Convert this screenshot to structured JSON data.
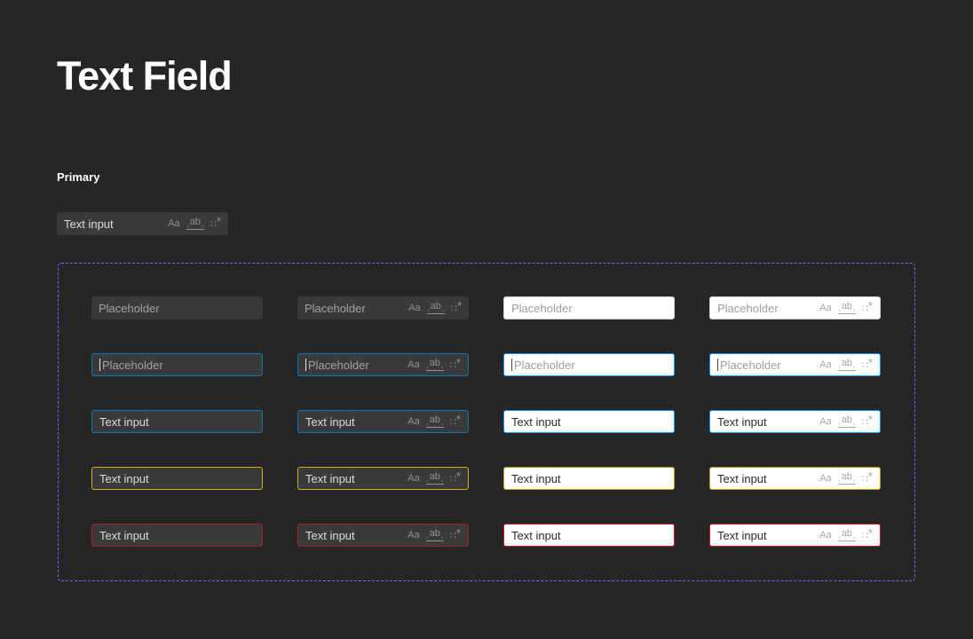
{
  "page": {
    "title": "Text Field",
    "section_label": "Primary"
  },
  "sample_field": {
    "value": "Text input"
  },
  "icons": {
    "case_label": "Aa",
    "ab_label": "ab",
    "tick_glyph": "‚",
    "dots_glyph": "∷",
    "asterisk_glyph": "*"
  },
  "grid": {
    "rows": [
      {
        "state": "default",
        "text": "Placeholder"
      },
      {
        "state": "focus",
        "text": "Placeholder"
      },
      {
        "state": "active",
        "text": "Text input"
      },
      {
        "state": "warning",
        "text": "Text input"
      },
      {
        "state": "error",
        "text": "Text input"
      }
    ],
    "columns": [
      {
        "theme": "dark",
        "icons": false
      },
      {
        "theme": "dark",
        "icons": true
      },
      {
        "theme": "light",
        "icons": false
      },
      {
        "theme": "light",
        "icons": true
      }
    ]
  },
  "colors": {
    "background": "#262626",
    "title_text": "#ffffff",
    "panel_border": "#7b61ff",
    "input_dark_bg": "#3a3a3a",
    "input_dark_text": "#dcdcdc",
    "input_dark_placeholder": "#a1a1a1",
    "input_light_bg": "#ffffff",
    "input_light_text": "#2e2e2e",
    "input_light_placeholder": "#9e9e9e",
    "input_light_border": "#d0d0d0",
    "icon_dark": "#919191",
    "icon_light": "#a6a6a6",
    "focus_blue_dark": "#1273b6",
    "focus_blue_light": "#0d99ff",
    "warning_yellow_dark": "#d8aa14",
    "warning_yellow_light": "#c89600",
    "error_red_dark": "#a02226",
    "error_red_light": "#d3161c",
    "caret_dark": "#e0e0e0",
    "caret_light": "#4a4a4a"
  }
}
